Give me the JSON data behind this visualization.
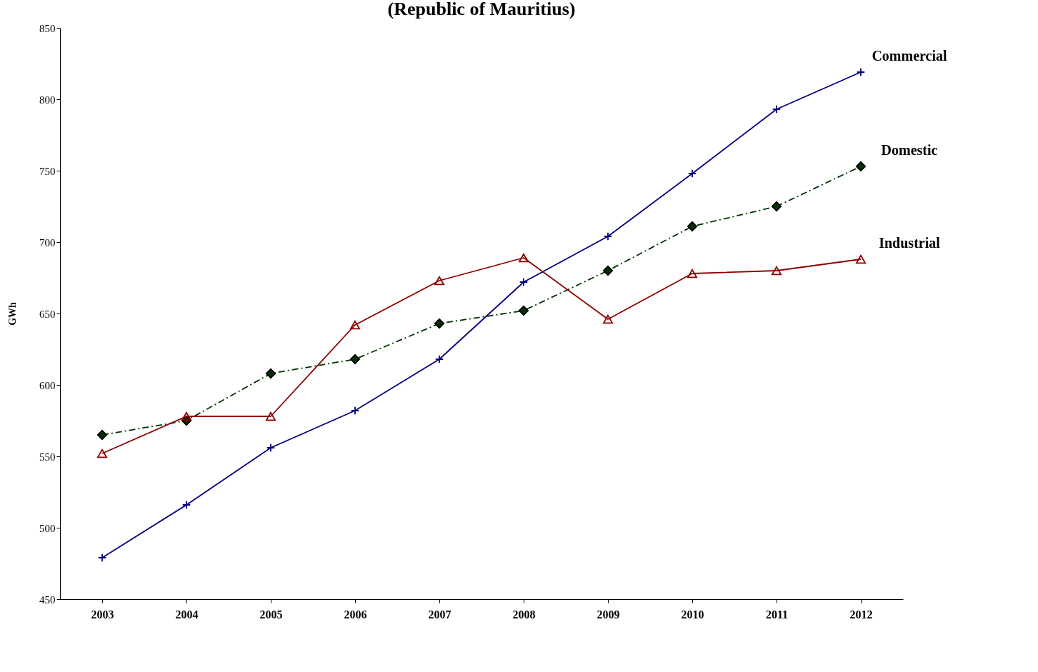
{
  "chart_data": {
    "type": "line",
    "title": "(Republic of Mauritius)",
    "ylabel": "GWh",
    "categories": [
      "2003",
      "2004",
      "2005",
      "2006",
      "2007",
      "2008",
      "2009",
      "2010",
      "2011",
      "2012"
    ],
    "ylim": [
      450,
      850
    ],
    "yticks": [
      450,
      500,
      550,
      600,
      650,
      700,
      750,
      800,
      850
    ],
    "grid": false,
    "legend": false,
    "series": [
      {
        "name": "Commercial",
        "color": "#000080",
        "marker": "cross",
        "line_style": "solid",
        "values": [
          479,
          516,
          556,
          582,
          618,
          672,
          704,
          748,
          793,
          819
        ]
      },
      {
        "name": "Domestic",
        "color": "#003300",
        "marker": "diamond",
        "line_style": "dashed",
        "values": [
          565,
          575,
          608,
          618,
          643,
          652,
          680,
          711,
          725,
          753
        ]
      },
      {
        "name": "Industrial",
        "color": "#8b0000",
        "marker": "triangle",
        "line_style": "solid",
        "values": [
          552,
          578,
          578,
          642,
          673,
          689,
          646,
          678,
          680,
          688
        ]
      }
    ]
  }
}
